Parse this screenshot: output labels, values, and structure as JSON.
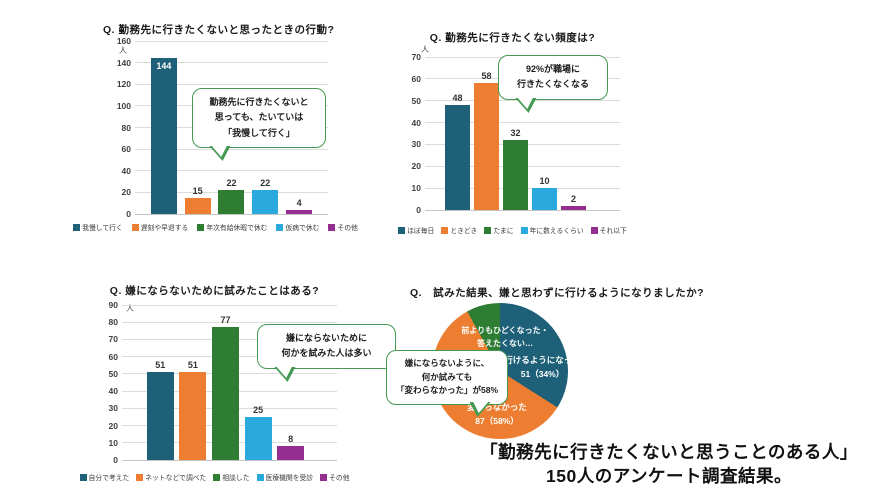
{
  "palette": {
    "teal": "#1d6078",
    "orange": "#ed7d31",
    "green": "#2e7d32",
    "light_blue": "#29a9dc",
    "purple": "#952d90",
    "bubble_border": "#459a52",
    "grid": "#dcdcdc",
    "axis_text": "#3f3f3f"
  },
  "chart_data": [
    {
      "type": "bar",
      "title": "Q. 勤務先に行きたくないと思ったときの行動?",
      "unit": "人",
      "ylabel": "人",
      "ylim": [
        0,
        160
      ],
      "ytick_step": 20,
      "grid": true,
      "legend_position": "bottom",
      "categories": [
        "我慢して行く",
        "遅刻や早退する",
        "年次有給休暇で休む",
        "仮病で休む",
        "その他"
      ],
      "values": [
        144,
        15,
        22,
        22,
        4
      ],
      "colors": [
        "#1d6078",
        "#ed7d31",
        "#2e7d32",
        "#29a9dc",
        "#952d90"
      ],
      "value_label_inside": [
        true,
        false,
        false,
        false,
        false
      ],
      "annotation": {
        "line1": "勤務先に行きたくないと",
        "line2": "思っても、たいていは",
        "line3": "「我慢して行く」"
      }
    },
    {
      "type": "bar",
      "title": "Q. 勤務先に行きたくない頻度は?",
      "unit": "人",
      "ylabel": "人",
      "ylim": [
        0,
        70
      ],
      "ytick_step": 10,
      "grid": true,
      "legend_position": "bottom",
      "categories": [
        "ほぼ毎日",
        "ときどき",
        "たまに",
        "年に数えるくらい",
        "それ以下"
      ],
      "values": [
        48,
        58,
        32,
        10,
        2
      ],
      "colors": [
        "#1d6078",
        "#ed7d31",
        "#2e7d32",
        "#29a9dc",
        "#952d90"
      ],
      "value_label_inside": [
        false,
        false,
        false,
        false,
        false
      ],
      "annotation": {
        "line1": "92%が職場に",
        "line2": "行きたくなくなる"
      }
    },
    {
      "type": "bar",
      "title": "Q. 嫌にならないために試みたことはある?",
      "unit": "人",
      "ylabel": "人",
      "ylim": [
        0,
        90
      ],
      "ytick_step": 10,
      "grid": true,
      "legend_position": "bottom",
      "categories": [
        "自分で考えた",
        "ネットなどで調べた",
        "相談した",
        "医療機関を受診",
        "その他"
      ],
      "values": [
        51,
        51,
        77,
        25,
        8
      ],
      "colors": [
        "#1d6078",
        "#ed7d31",
        "#2e7d32",
        "#29a9dc",
        "#952d90"
      ],
      "value_label_inside": [
        false,
        false,
        false,
        false,
        false
      ],
      "annotation": {
        "line1": "嫌にならないために",
        "line2": "何かを試みた人は多い"
      }
    },
    {
      "type": "pie",
      "title": "Q.　試みた結果、嫌と思わずに行けるようになりましたか?",
      "slices": [
        {
          "label": "行けるようになった",
          "value": 51,
          "percent": 34,
          "color": "#1d6078",
          "label_lines": [
            "行けるようになった",
            "51（34%）"
          ]
        },
        {
          "label": "変わらなかった",
          "value": 87,
          "percent": 58,
          "color": "#ed7d31",
          "label_lines": [
            "変わらなかった",
            "87（58%）"
          ]
        },
        {
          "label": "前よりもひどくなった・答えたくない…",
          "value": 12,
          "percent": 8,
          "color": "#2e7d32",
          "label_lines": [
            "前よりもひどくなった・",
            "答えたくない…"
          ]
        }
      ],
      "annotation": {
        "line1": "嫌にならないように、",
        "line2": "何か試みても",
        "line3": "「変わらなかった」が58%"
      }
    }
  ],
  "caption": {
    "line1": "「勤務先に行きたくないと思うことのある人」",
    "line2": "150人のアンケート調査結果。"
  }
}
